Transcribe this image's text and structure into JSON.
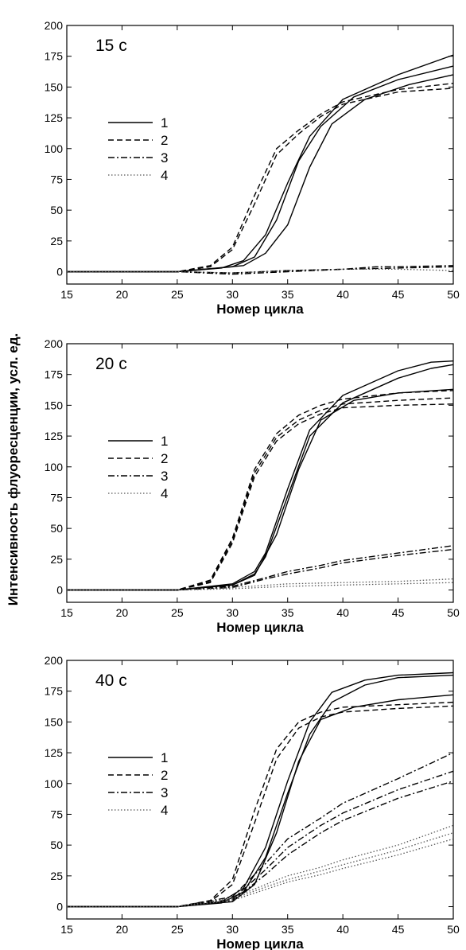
{
  "ylabel": "Интенсивность флуоресценции,  усл. ед.",
  "legend": [
    "1",
    "2",
    "3",
    "4"
  ],
  "chart_data": [
    {
      "type": "line",
      "title": "15 с",
      "xlabel": "Номер цикла",
      "xlim": [
        15,
        50
      ],
      "ylim": [
        -10,
        200
      ],
      "xticks": [
        15,
        20,
        25,
        30,
        35,
        40,
        45,
        50
      ],
      "yticks": [
        0,
        25,
        50,
        75,
        100,
        125,
        150,
        175,
        200
      ],
      "legend_entries": [
        "1",
        "2",
        "3",
        "4"
      ],
      "series": [
        {
          "name": "1",
          "style": "solid",
          "x": [
            15,
            25,
            29,
            31,
            33,
            35,
            37,
            40,
            45,
            50
          ],
          "y": [
            0,
            0,
            3,
            9,
            30,
            72,
            110,
            140,
            160,
            176
          ]
        },
        {
          "name": "1",
          "style": "solid",
          "x": [
            15,
            25,
            30,
            32,
            34,
            36,
            38,
            41,
            45,
            50
          ],
          "y": [
            0,
            0,
            4,
            12,
            42,
            90,
            118,
            142,
            156,
            167
          ]
        },
        {
          "name": "1",
          "style": "solid",
          "x": [
            15,
            25,
            31,
            33,
            35,
            37,
            39,
            42,
            46,
            50
          ],
          "y": [
            0,
            0,
            5,
            15,
            38,
            85,
            120,
            140,
            152,
            160
          ]
        },
        {
          "name": "2",
          "style": "dashed",
          "x": [
            15,
            25,
            28,
            30,
            32,
            34,
            36,
            38,
            40,
            45,
            50
          ],
          "y": [
            0,
            0,
            5,
            20,
            62,
            100,
            115,
            128,
            138,
            148,
            153
          ]
        },
        {
          "name": "2",
          "style": "dashed",
          "x": [
            15,
            25,
            28,
            30,
            32,
            34,
            36,
            38,
            40,
            45,
            50
          ],
          "y": [
            0,
            0,
            4,
            18,
            55,
            95,
            112,
            126,
            136,
            146,
            149
          ]
        },
        {
          "name": "3",
          "style": "dashdot",
          "x": [
            15,
            25,
            30,
            35,
            40,
            43,
            45,
            50
          ],
          "y": [
            0,
            0,
            -1,
            1,
            2,
            4,
            4,
            5
          ]
        },
        {
          "name": "3",
          "style": "dashdot",
          "x": [
            15,
            25,
            30,
            35,
            40,
            45,
            50
          ],
          "y": [
            0,
            0,
            -2,
            0,
            2,
            3,
            4
          ]
        },
        {
          "name": "4",
          "style": "dotted",
          "x": [
            15,
            25,
            30,
            35,
            40,
            45,
            50
          ],
          "y": [
            0,
            0,
            -1,
            1,
            2,
            2,
            1
          ]
        }
      ]
    },
    {
      "type": "line",
      "title": "20 с",
      "xlabel": "Номер цикла",
      "xlim": [
        15,
        50
      ],
      "ylim": [
        -10,
        200
      ],
      "xticks": [
        15,
        20,
        25,
        30,
        35,
        40,
        45,
        50
      ],
      "yticks": [
        0,
        25,
        50,
        75,
        100,
        125,
        150,
        175,
        200
      ],
      "legend_entries": [
        "1",
        "2",
        "3",
        "4"
      ],
      "series": [
        {
          "name": "1",
          "style": "solid",
          "x": [
            15,
            25,
            30,
            32,
            33,
            35,
            37,
            40,
            45,
            48,
            50
          ],
          "y": [
            0,
            0,
            5,
            15,
            30,
            82,
            130,
            158,
            178,
            185,
            186
          ]
        },
        {
          "name": "1",
          "style": "solid",
          "x": [
            15,
            25,
            30,
            32,
            33,
            35,
            37,
            40,
            45,
            48,
            50
          ],
          "y": [
            0,
            0,
            4,
            13,
            27,
            76,
            125,
            152,
            172,
            180,
            183
          ]
        },
        {
          "name": "1",
          "style": "solid",
          "x": [
            15,
            25,
            30,
            32,
            34,
            36,
            38,
            41,
            45,
            50
          ],
          "y": [
            0,
            0,
            4,
            12,
            45,
            98,
            138,
            154,
            160,
            163
          ]
        },
        {
          "name": "2",
          "style": "dashed",
          "x": [
            15,
            25,
            28,
            30,
            32,
            34,
            36,
            38,
            40,
            45,
            50
          ],
          "y": [
            0,
            0,
            8,
            42,
            98,
            127,
            142,
            150,
            155,
            160,
            162
          ]
        },
        {
          "name": "2",
          "style": "dashed",
          "x": [
            15,
            25,
            28,
            30,
            32,
            34,
            36,
            38,
            40,
            45,
            50
          ],
          "y": [
            0,
            0,
            7,
            40,
            95,
            124,
            138,
            146,
            151,
            154,
            156
          ]
        },
        {
          "name": "2",
          "style": "dashed",
          "x": [
            15,
            25,
            28,
            30,
            32,
            34,
            36,
            38,
            40,
            45,
            50
          ],
          "y": [
            0,
            0,
            6,
            38,
            92,
            121,
            135,
            143,
            148,
            150,
            151
          ]
        },
        {
          "name": "3",
          "style": "dashdot",
          "x": [
            15,
            25,
            30,
            33,
            35,
            38,
            40,
            45,
            50
          ],
          "y": [
            0,
            0,
            3,
            10,
            15,
            20,
            24,
            30,
            36
          ]
        },
        {
          "name": "3",
          "style": "dashdot",
          "x": [
            15,
            25,
            30,
            33,
            35,
            38,
            40,
            45,
            50
          ],
          "y": [
            0,
            0,
            2,
            9,
            13,
            18,
            22,
            28,
            33
          ]
        },
        {
          "name": "4",
          "style": "dotted",
          "x": [
            15,
            25,
            30,
            35,
            40,
            45,
            50
          ],
          "y": [
            0,
            0,
            2,
            5,
            6,
            7,
            9
          ]
        },
        {
          "name": "4",
          "style": "dotted",
          "x": [
            15,
            25,
            30,
            35,
            40,
            45,
            50
          ],
          "y": [
            0,
            0,
            1,
            3,
            4,
            5,
            6
          ]
        }
      ]
    },
    {
      "type": "line",
      "title": "40 с",
      "xlabel": "Номер цикла",
      "xlim": [
        15,
        50
      ],
      "ylim": [
        -10,
        200
      ],
      "xticks": [
        15,
        20,
        25,
        30,
        35,
        40,
        45,
        50
      ],
      "yticks": [
        0,
        25,
        50,
        75,
        100,
        125,
        150,
        175,
        200
      ],
      "legend_entries": [
        "1",
        "2",
        "3",
        "4"
      ],
      "series": [
        {
          "name": "1",
          "style": "solid",
          "x": [
            15,
            25,
            29,
            31,
            33,
            35,
            37,
            39,
            42,
            45,
            50
          ],
          "y": [
            0,
            0,
            4,
            15,
            48,
            102,
            150,
            174,
            184,
            188,
            190
          ]
        },
        {
          "name": "1",
          "style": "solid",
          "x": [
            15,
            25,
            29,
            31,
            33,
            35,
            37,
            39,
            42,
            45,
            50
          ],
          "y": [
            0,
            0,
            3,
            12,
            40,
            92,
            140,
            166,
            180,
            186,
            188
          ]
        },
        {
          "name": "1",
          "style": "solid",
          "x": [
            15,
            25,
            30,
            32,
            34,
            36,
            38,
            41,
            45,
            50
          ],
          "y": [
            0,
            0,
            4,
            18,
            60,
            118,
            152,
            162,
            168,
            172
          ]
        },
        {
          "name": "2",
          "style": "dashed",
          "x": [
            15,
            25,
            28,
            30,
            32,
            34,
            36,
            38,
            40,
            45,
            50
          ],
          "y": [
            0,
            0,
            5,
            22,
            78,
            128,
            150,
            158,
            162,
            164,
            166
          ]
        },
        {
          "name": "2",
          "style": "dashed",
          "x": [
            15,
            25,
            28,
            30,
            32,
            34,
            36,
            38,
            40,
            45,
            50
          ],
          "y": [
            0,
            0,
            4,
            18,
            68,
            120,
            145,
            154,
            158,
            161,
            163
          ]
        },
        {
          "name": "3",
          "style": "dashdot",
          "x": [
            15,
            25,
            30,
            33,
            35,
            38,
            40,
            45,
            50
          ],
          "y": [
            0,
            0,
            8,
            35,
            55,
            72,
            84,
            104,
            125
          ]
        },
        {
          "name": "3",
          "style": "dashdot",
          "x": [
            15,
            25,
            30,
            33,
            35,
            38,
            40,
            45,
            50
          ],
          "y": [
            0,
            0,
            6,
            30,
            48,
            66,
            76,
            95,
            110
          ]
        },
        {
          "name": "3",
          "style": "dashdot",
          "x": [
            15,
            25,
            30,
            33,
            35,
            38,
            40,
            45,
            50
          ],
          "y": [
            0,
            0,
            5,
            26,
            42,
            60,
            70,
            88,
            102
          ]
        },
        {
          "name": "4",
          "style": "dotted",
          "x": [
            15,
            25,
            30,
            33,
            35,
            38,
            40,
            45,
            50
          ],
          "y": [
            0,
            0,
            7,
            18,
            25,
            32,
            38,
            50,
            66
          ]
        },
        {
          "name": "4",
          "style": "dotted",
          "x": [
            15,
            25,
            30,
            33,
            35,
            38,
            40,
            45,
            50
          ],
          "y": [
            0,
            0,
            6,
            16,
            22,
            29,
            34,
            46,
            60
          ]
        },
        {
          "name": "4",
          "style": "dotted",
          "x": [
            15,
            25,
            30,
            33,
            35,
            38,
            40,
            45,
            50
          ],
          "y": [
            0,
            0,
            5,
            14,
            20,
            26,
            31,
            42,
            55
          ]
        }
      ]
    }
  ]
}
